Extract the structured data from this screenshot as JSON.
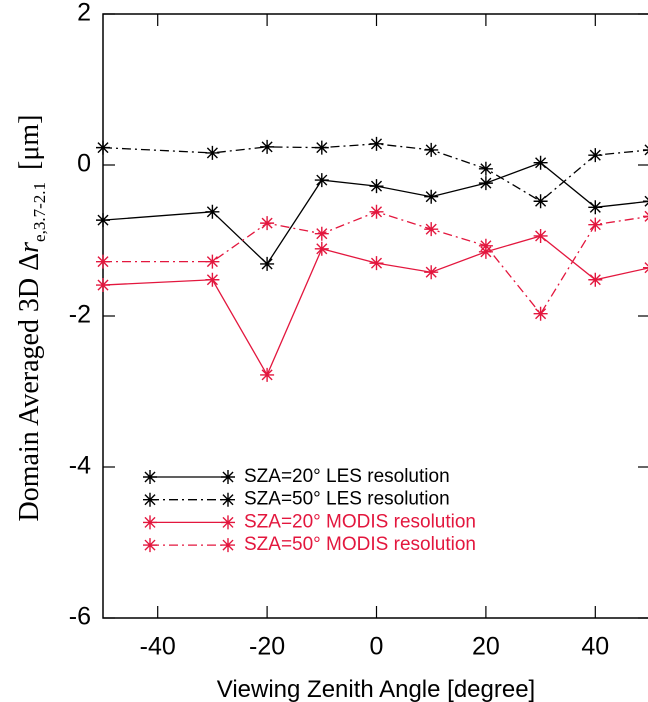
{
  "chart_data": {
    "type": "line",
    "x_label": "Viewing Zenith Angle [degree]",
    "y_label": {
      "main": "Domain Averaged 3D Δ",
      "var": "r",
      "sub": "e,3.7-2.1",
      "unit": "[μm]"
    },
    "x": [
      -50,
      -30,
      -20,
      -10,
      0,
      10,
      20,
      30,
      40,
      50
    ],
    "xlim": [
      -50,
      50
    ],
    "xticks": [
      -40,
      -20,
      0,
      20,
      40
    ],
    "ylim": [
      -6,
      2
    ],
    "yticks": [
      2,
      0,
      -2,
      -4,
      -6
    ],
    "series": [
      {
        "name": "SZA=20° LES resolution",
        "color": "#000000",
        "style": "solid",
        "values": [
          -0.73,
          -0.62,
          -1.31,
          -0.2,
          -0.28,
          -0.42,
          -0.24,
          0.03,
          -0.56,
          -0.48
        ]
      },
      {
        "name": "SZA=50° LES resolution",
        "color": "#000000",
        "style": "dashdot",
        "values": [
          0.23,
          0.16,
          0.24,
          0.23,
          0.28,
          0.2,
          -0.05,
          -0.48,
          0.13,
          0.2
        ]
      },
      {
        "name": "SZA=20° MODIS resolution",
        "color": "#e3173e",
        "style": "solid",
        "values": [
          -1.59,
          -1.52,
          -2.78,
          -1.11,
          -1.3,
          -1.42,
          -1.15,
          -0.94,
          -1.52,
          -1.36
        ]
      },
      {
        "name": "SZA=50° MODIS resolution",
        "color": "#e3173e",
        "style": "dashdot",
        "values": [
          -1.28,
          -1.28,
          -0.77,
          -0.91,
          -0.62,
          -0.85,
          -1.07,
          -1.97,
          -0.79,
          -0.68
        ]
      }
    ]
  }
}
